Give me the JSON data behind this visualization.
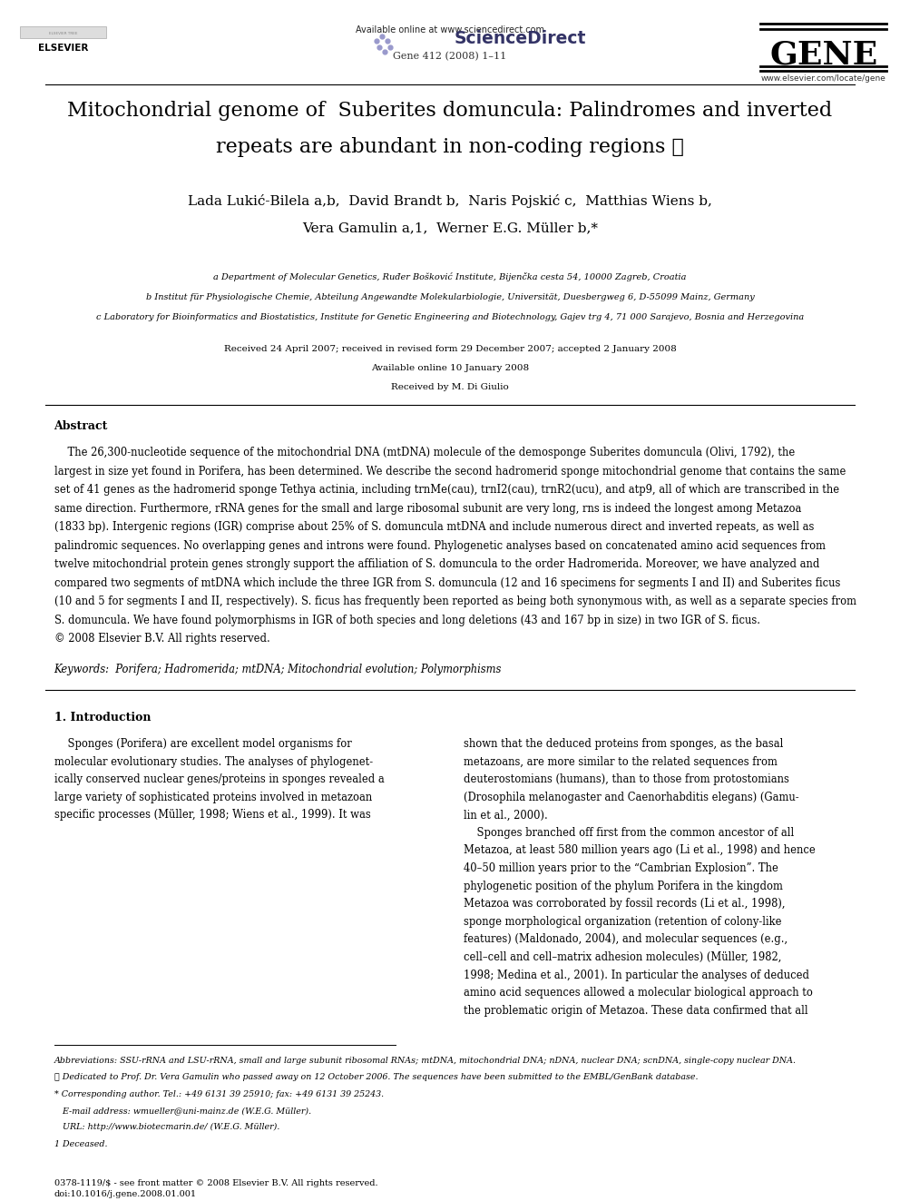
{
  "title_line1": "Mitochondrial genome of  Suberites domuncula: Palindromes and inverted",
  "title_line2": "repeats are abundant in non-coding regions ☆",
  "authors_line1": "Lada Lukić-Bilela a,b,  David Brandt b,  Naris Pojskić c,  Matthias Wiens b,",
  "authors_line2": "Vera Gamulin a,1,  Werner E.G. Müller b,*",
  "affil_a": "a Department of Molecular Genetics, Ruđer Bošković Institute, Bijenčka cesta 54, 10000 Zagreb, Croatia",
  "affil_b": "b Institut für Physiologische Chemie, Abteilung Angewandte Molekularbiologie, Universität, Duesbergweg 6, D-55099 Mainz, Germany",
  "affil_c": "c Laboratory for Bioinformatics and Biostatistics, Institute for Genetic Engineering and Biotechnology, Gajev trg 4, 71 000 Sarajevo, Bosnia and Herzegovina",
  "received": "Received 24 April 2007; received in revised form 29 December 2007; accepted 2 January 2008",
  "available": "Available online 10 January 2008",
  "received_by": "Received by M. Di Giulio",
  "journal_info": "Gene 412 (2008) 1–11",
  "available_online": "Available online at www.sciencedirect.com",
  "journal_url": "www.elsevier.com/locate/gene",
  "abstract_title": "Abstract",
  "abstract_text1": "    The 26,300-nucleotide sequence of the mitochondrial DNA (mtDNA) molecule of the demosponge Suberites domuncula (Olivi, 1792), the largest in size yet found in Porifera, has been determined. We describe the second hadromerid sponge mitochondrial genome that contains the same set of 41 genes as the hadromerid sponge Tethya actinia, including trnMe(cau), trnI2(cau), trnR2(ucu), and atp9, all of which are transcribed in the same direction. Furthermore, rRNA genes for the small and large ribosomal subunit are very long, rns is indeed the longest among Metazoa (1833 bp). Intergenic regions (IGR) comprise about 25% of S. domuncula mtDNA and include numerous direct and inverted repeats, as well as palindromic sequences. No overlapping genes and introns were found. Phylogenetic analyses based on concatenated amino acid sequences from twelve mitochondrial protein genes strongly support the affiliation of S. domuncula to the order Hadromerida. Moreover, we have analyzed and compared two segments of mtDNA which include the three IGR from S. domuncula (12 and 16 specimens for segments I and II) and Suberites ficus (10 and 5 for segments I and II, respectively). S. ficus has frequently been reported as being both synonymous with, as well as a separate species from S. domuncula. We have found polymorphisms in IGR of both species and long deletions (43 and 167 bp in size) in two IGR of S. ficus.",
  "abstract_text2": "© 2008 Elsevier B.V. All rights reserved.",
  "keywords": "Keywords:  Porifera; Hadromerida; mtDNA; Mitochondrial evolution; Polymorphisms",
  "section1_title": "1. Introduction",
  "intro_left": "    Sponges (Porifera) are excellent model organisms for\nmolecular evolutionary studies. The analyses of phylogenet-\nically conserved nuclear genes/proteins in sponges revealed a\nlarge variety of sophisticated proteins involved in metazoan\nspecific processes (Müller, 1998; Wiens et al., 1999). It was",
  "intro_right": "shown that the deduced proteins from sponges, as the basal\nmetazoans, are more similar to the related sequences from\ndeuterostomians (humans), than to those from protostomians\n(Drosophila melanogaster and Caenorhabditis elegans) (Gamu-\nlin et al., 2000).\n    Sponges branched off first from the common ancestor of all\nMetazoa, at least 580 million years ago (Li et al., 1998) and hence\n40–50 million years prior to the “Cambrian Explosion”. The\nphylogenetic position of the phylum Porifera in the kingdom\nMetazoa was corroborated by fossil records (Li et al., 1998),\nsponge morphological organization (retention of colony-like\nfeatures) (Maldonado, 2004), and molecular sequences (e.g.,\ncell–cell and cell–matrix adhesion molecules) (Müller, 1982,\n1998; Medina et al., 2001). In particular the analyses of deduced\namino acid sequences allowed a molecular biological approach to\nthe problematic origin of Metazoa. These data confirmed that all",
  "footnote_abbrev": "Abbreviations: SSU-rRNA and LSU-rRNA, small and large subunit ribosomal RNAs; mtDNA,\nmitochondrial DNA; nDNA, nuclear DNA; scnDNA, single-copy nuclear DNA.",
  "footnote_star": "☆ Dedicated to Prof. Dr. Vera Gamulin who passed away on 12 October 2006. The sequences\nhave been submitted to the EMBL/GenBank database.",
  "footnote_corr": "* Corresponding author. Tel.: +49 6131 39 25910; fax: +49 6131 39 25243.",
  "footnote_email": "   E-mail address: wmueller@uni-mainz.de (W.E.G. Müller).",
  "footnote_url": "   URL: http://www.biotecmarin.de/ (W.E.G. Müller).",
  "footnote_dagger": "1 Deceased.",
  "issn": "0378-1119/$ - see front matter © 2008 Elsevier B.V. All rights reserved.",
  "doi": "doi:10.1016/j.gene.2008.01.001",
  "bg_color": "#ffffff",
  "text_color": "#000000"
}
